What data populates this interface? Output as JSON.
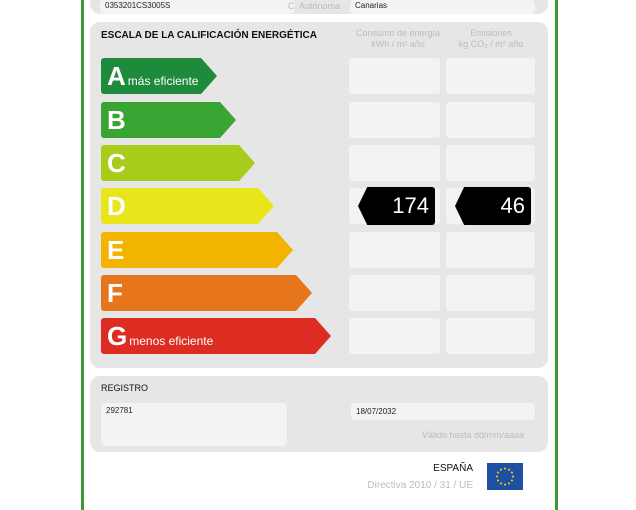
{
  "top": {
    "ref": "0353201CS3005S",
    "label": "C. Autónoma",
    "value": "Canarias"
  },
  "scale": {
    "title": "ESCALA DE LA CALIFICACIÓN ENERGÉTICA",
    "col1": [
      "Consumo de energía",
      "kWh / m² año"
    ],
    "col2": [
      "Emisiones",
      "kg CO₂ / m² año"
    ],
    "bars": [
      {
        "letter": "A",
        "text": "más eficiente",
        "color": "#1e8a3c"
      },
      {
        "letter": "B",
        "text": "",
        "color": "#3aa535"
      },
      {
        "letter": "C",
        "text": "",
        "color": "#a8cc1a"
      },
      {
        "letter": "D",
        "text": "",
        "color": "#e8e51a"
      },
      {
        "letter": "E",
        "text": "",
        "color": "#f2b400"
      },
      {
        "letter": "F",
        "text": "",
        "color": "#e7751c"
      },
      {
        "letter": "G",
        "text": "menos eficiente",
        "color": "#dd2d22"
      }
    ],
    "rating": {
      "letter": "D",
      "consumption": "174",
      "emissions": "46"
    }
  },
  "registro": {
    "title": "REGISTRO",
    "number": "292781",
    "date": "18/07/2032",
    "valid_label": "Válido hasta dd/mm/aaaa"
  },
  "footer": {
    "country": "ESPAÑA",
    "directive": "Directiva 2010 / 31 / UE"
  }
}
